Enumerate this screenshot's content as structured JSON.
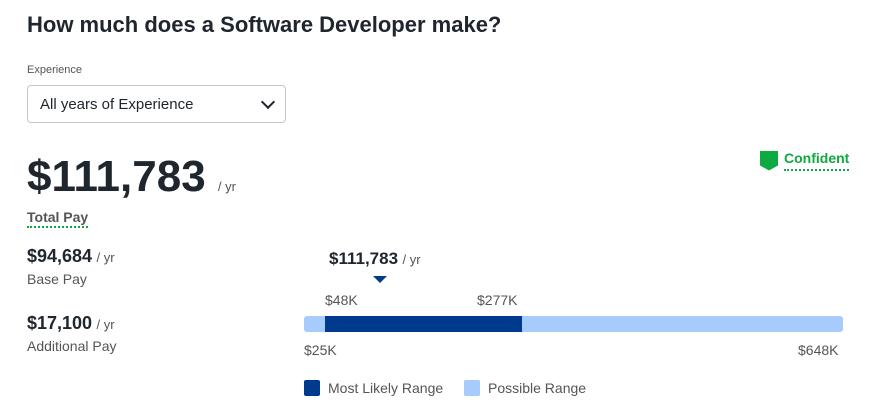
{
  "title": "How much does a Software Developer make?",
  "experience": {
    "label": "Experience",
    "value": "All years of Experience"
  },
  "total": {
    "amount": "$111,783",
    "unit": "/ yr",
    "label": "Total Pay"
  },
  "confidence": {
    "label": "Confident",
    "color": "#0caa41"
  },
  "base": {
    "amount": "$94,684",
    "unit": "/ yr",
    "label": "Base Pay"
  },
  "additional": {
    "amount": "$17,100",
    "unit": "/ yr",
    "label": "Additional Pay"
  },
  "range": {
    "marker": "$111,783",
    "marker_unit": "/ yr",
    "likely_low": "$48K",
    "likely_high": "$277K",
    "min": "$25K",
    "max": "$648K",
    "colors": {
      "likely": "#003a8c",
      "possible": "#a7cbfb"
    }
  },
  "legend": {
    "likely": "Most Likely Range",
    "possible": "Possible Range"
  }
}
